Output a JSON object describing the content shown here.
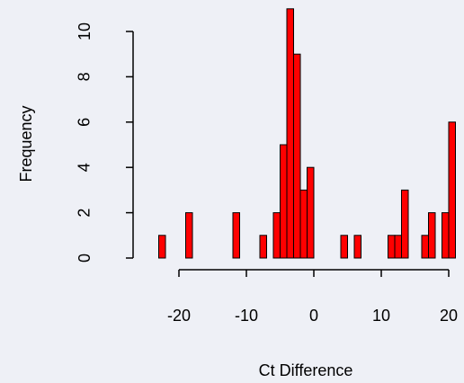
{
  "chart_data": {
    "type": "histogram",
    "x_label": "Ct Difference",
    "y_label": "Frequency",
    "bins": [
      -23,
      -22,
      -21,
      -20,
      -19,
      -18,
      -17,
      -16,
      -15,
      -14,
      -13,
      -12,
      -11,
      -10,
      -9,
      -8,
      -7,
      -6,
      -5,
      -4,
      -3,
      -2,
      -1,
      0,
      1,
      2,
      3,
      4,
      5,
      6,
      7,
      8,
      9,
      10,
      11,
      12,
      13,
      14,
      15,
      16,
      17,
      18,
      19,
      20,
      21
    ],
    "values": [
      1,
      0,
      0,
      0,
      2,
      0,
      0,
      0,
      0,
      0,
      0,
      2,
      0,
      0,
      0,
      1,
      0,
      2,
      5,
      11,
      9,
      3,
      4,
      0,
      0,
      0,
      0,
      1,
      0,
      1,
      0,
      0,
      0,
      0,
      1,
      1,
      3,
      0,
      0,
      1,
      2,
      0,
      2,
      6
    ],
    "color": "#ff0000",
    "xlim": [
      -23,
      21
    ],
    "xticks": [
      -20,
      -10,
      0,
      10,
      20
    ],
    "ylim": [
      0,
      11
    ],
    "yticks": [
      0,
      2,
      4,
      6,
      8,
      10
    ]
  }
}
